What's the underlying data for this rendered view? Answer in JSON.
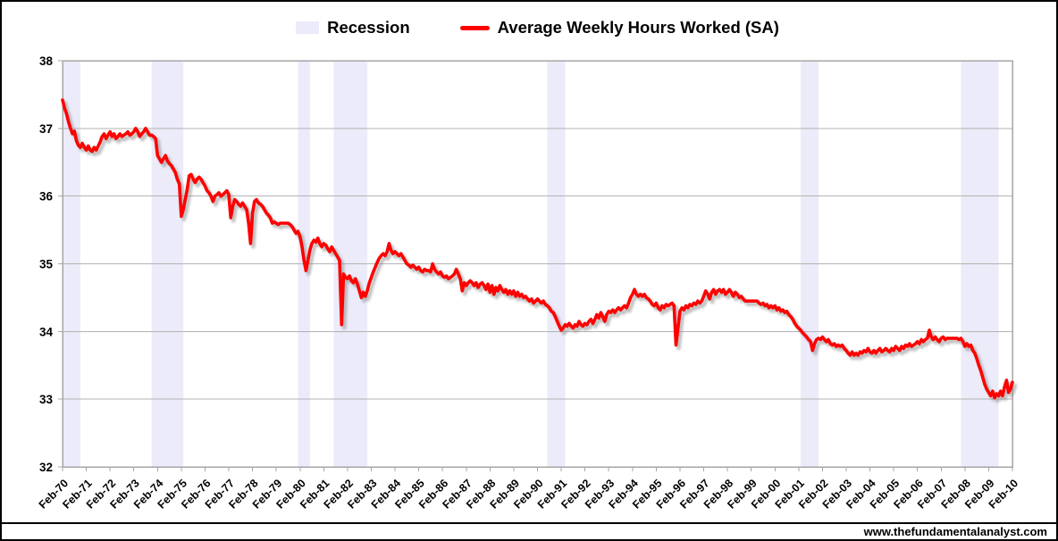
{
  "legend": {
    "recession_label": "Recession",
    "series_label": "Average Weekly Hours Worked (SA)"
  },
  "footer": {
    "watermark": "www.thefundamentalanalyst.com"
  },
  "colors": {
    "series": "#ff0000",
    "recession_band": "#ebebf9",
    "gridline": "#b3b3b3",
    "plot_border": "#a6a6a6",
    "text": "#000000",
    "shadow": "#8f8f8f",
    "footer_rule": "#000000",
    "outer_border": "#000000",
    "background": "#ffffff"
  },
  "chart_data": {
    "type": "line",
    "title": "",
    "legend_position": "top",
    "grid": true,
    "x_domain_years": [
      1970.083,
      2010.083
    ],
    "x_axis": {
      "tick_labels": [
        "Feb-70",
        "Feb-71",
        "Feb-72",
        "Feb-73",
        "Feb-74",
        "Feb-75",
        "Feb-76",
        "Feb-77",
        "Feb-78",
        "Feb-79",
        "Feb-80",
        "Feb-81",
        "Feb-82",
        "Feb-83",
        "Feb-84",
        "Feb-85",
        "Feb-86",
        "Feb-87",
        "Feb-88",
        "Feb-89",
        "Feb-90",
        "Feb-91",
        "Feb-92",
        "Feb-93",
        "Feb-94",
        "Feb-95",
        "Feb-96",
        "Feb-97",
        "Feb-98",
        "Feb-99",
        "Feb-00",
        "Feb-01",
        "Feb-02",
        "Feb-03",
        "Feb-04",
        "Feb-05",
        "Feb-06",
        "Feb-07",
        "Feb-08",
        "Feb-09",
        "Feb-10"
      ]
    },
    "y_axis": {
      "min": 32,
      "max": 38,
      "ticks": [
        38,
        37,
        36,
        35,
        34,
        33,
        32
      ]
    },
    "recession_bands": [
      {
        "start": 1970.083,
        "end": 1970.833
      },
      {
        "start": 1973.833,
        "end": 1975.167
      },
      {
        "start": 1980.0,
        "end": 1980.5
      },
      {
        "start": 1981.5,
        "end": 1982.917
      },
      {
        "start": 1990.5,
        "end": 1991.25
      },
      {
        "start": 2001.167,
        "end": 2001.917
      },
      {
        "start": 2007.917,
        "end": 2009.5
      }
    ],
    "series": [
      {
        "name": "Average Weekly Hours Worked (SA)",
        "frequency": "monthly",
        "start": "Feb-1970",
        "end": "Feb-2010",
        "values": [
          37.42,
          37.3,
          37.22,
          37.1,
          37.0,
          36.92,
          36.96,
          36.82,
          36.75,
          36.72,
          36.78,
          36.72,
          36.68,
          36.74,
          36.68,
          36.66,
          36.72,
          36.68,
          36.74,
          36.8,
          36.88,
          36.92,
          36.85,
          36.9,
          36.95,
          36.88,
          36.92,
          36.85,
          36.88,
          36.92,
          36.88,
          36.9,
          36.92,
          36.95,
          36.9,
          36.92,
          36.95,
          37.0,
          36.95,
          36.88,
          36.92,
          36.95,
          37.0,
          36.95,
          36.9,
          36.9,
          36.88,
          36.85,
          36.6,
          36.55,
          36.5,
          36.55,
          36.6,
          36.52,
          36.48,
          36.45,
          36.4,
          36.35,
          36.25,
          36.18,
          35.7,
          35.8,
          35.95,
          36.1,
          36.3,
          36.32,
          36.25,
          36.2,
          36.25,
          36.28,
          36.25,
          36.2,
          36.15,
          36.08,
          36.05,
          36.0,
          35.92,
          36.0,
          36.02,
          36.05,
          36.0,
          36.02,
          36.05,
          36.08,
          36.02,
          35.68,
          35.85,
          35.95,
          35.92,
          35.88,
          35.85,
          35.9,
          35.85,
          35.8,
          35.6,
          35.3,
          35.75,
          35.92,
          35.95,
          35.9,
          35.88,
          35.85,
          35.8,
          35.75,
          35.72,
          35.68,
          35.6,
          35.62,
          35.6,
          35.58,
          35.6,
          35.6,
          35.6,
          35.6,
          35.6,
          35.58,
          35.55,
          35.5,
          35.45,
          35.48,
          35.4,
          35.25,
          35.05,
          34.9,
          35.05,
          35.2,
          35.3,
          35.35,
          35.32,
          35.38,
          35.3,
          35.25,
          35.3,
          35.28,
          35.22,
          35.18,
          35.25,
          35.2,
          35.15,
          35.1,
          35.05,
          34.1,
          34.85,
          34.8,
          34.78,
          34.82,
          34.75,
          34.72,
          34.78,
          34.7,
          34.6,
          34.5,
          34.58,
          34.52,
          34.6,
          34.72,
          34.8,
          34.88,
          34.95,
          35.02,
          35.08,
          35.12,
          35.15,
          35.12,
          35.18,
          35.3,
          35.2,
          35.15,
          35.18,
          35.15,
          35.12,
          35.15,
          35.1,
          35.05,
          35.0,
          34.98,
          34.95,
          34.98,
          34.95,
          34.92,
          34.95,
          34.9,
          34.88,
          34.92,
          34.9,
          34.9,
          34.88,
          35.0,
          34.92,
          34.88,
          34.85,
          34.88,
          34.82,
          34.8,
          34.82,
          34.78,
          34.8,
          34.82,
          34.85,
          34.92,
          34.85,
          34.78,
          34.6,
          34.72,
          34.68,
          34.72,
          34.75,
          34.72,
          34.68,
          34.72,
          34.65,
          34.7,
          34.72,
          34.68,
          34.62,
          34.7,
          34.58,
          34.68,
          34.55,
          34.65,
          34.6,
          34.68,
          34.62,
          34.58,
          34.62,
          34.55,
          34.6,
          34.55,
          34.6,
          34.52,
          34.58,
          34.52,
          34.55,
          34.5,
          34.52,
          34.48,
          34.45,
          34.48,
          34.42,
          34.45,
          34.48,
          34.45,
          34.42,
          34.45,
          34.4,
          34.38,
          34.35,
          34.3,
          34.28,
          34.22,
          34.15,
          34.08,
          34.02,
          34.05,
          34.1,
          34.08,
          34.12,
          34.08,
          34.05,
          34.1,
          34.08,
          34.15,
          34.1,
          34.08,
          34.12,
          34.1,
          34.15,
          34.18,
          34.12,
          34.18,
          34.25,
          34.2,
          34.28,
          34.22,
          34.15,
          34.25,
          34.3,
          34.28,
          34.32,
          34.28,
          34.32,
          34.35,
          34.32,
          34.35,
          34.38,
          34.35,
          34.42,
          34.5,
          34.55,
          34.62,
          34.55,
          34.52,
          34.55,
          34.52,
          34.55,
          34.5,
          34.48,
          34.45,
          34.4,
          34.38,
          34.42,
          34.35,
          34.32,
          34.38,
          34.35,
          34.4,
          34.38,
          34.4,
          34.42,
          34.38,
          33.8,
          34.05,
          34.3,
          34.35,
          34.32,
          34.38,
          34.35,
          34.4,
          34.38,
          34.42,
          34.4,
          34.45,
          34.42,
          34.45,
          34.52,
          34.6,
          34.55,
          34.48,
          34.58,
          34.62,
          34.55,
          34.6,
          34.62,
          34.58,
          34.62,
          34.55,
          34.58,
          34.62,
          34.58,
          34.52,
          34.58,
          34.55,
          34.5,
          34.52,
          34.48,
          34.45,
          34.45,
          34.45,
          34.45,
          34.45,
          34.45,
          34.45,
          34.42,
          34.4,
          34.42,
          34.38,
          34.4,
          34.35,
          34.38,
          34.35,
          34.38,
          34.32,
          34.35,
          34.3,
          34.32,
          34.28,
          34.3,
          34.25,
          34.22,
          34.18,
          34.12,
          34.08,
          34.05,
          34.02,
          33.98,
          33.95,
          33.92,
          33.88,
          33.85,
          33.72,
          33.82,
          33.88,
          33.9,
          33.88,
          33.92,
          33.88,
          33.85,
          33.88,
          33.82,
          33.8,
          33.82,
          33.78,
          33.8,
          33.78,
          33.8,
          33.75,
          33.72,
          33.68,
          33.65,
          33.7,
          33.65,
          33.68,
          33.65,
          33.7,
          33.68,
          33.72,
          33.7,
          33.75,
          33.7,
          33.68,
          33.72,
          33.68,
          33.72,
          33.75,
          33.7,
          33.72,
          33.75,
          33.72,
          33.7,
          33.75,
          33.72,
          33.78,
          33.75,
          33.72,
          33.78,
          33.75,
          33.8,
          33.78,
          33.82,
          33.78,
          33.8,
          33.82,
          33.85,
          33.82,
          33.88,
          33.85,
          33.88,
          33.9,
          34.02,
          33.92,
          33.88,
          33.92,
          33.88,
          33.85,
          33.9,
          33.92,
          33.88,
          33.9,
          33.9,
          33.9,
          33.9,
          33.9,
          33.9,
          33.88,
          33.9,
          33.85,
          33.78,
          33.82,
          33.78,
          33.8,
          33.72,
          33.68,
          33.6,
          33.5,
          33.42,
          33.32,
          33.22,
          33.15,
          33.1,
          33.05,
          33.12,
          33.02,
          33.08,
          33.05,
          33.12,
          33.05,
          33.18,
          33.28,
          33.1,
          33.15,
          33.25
        ]
      }
    ]
  }
}
